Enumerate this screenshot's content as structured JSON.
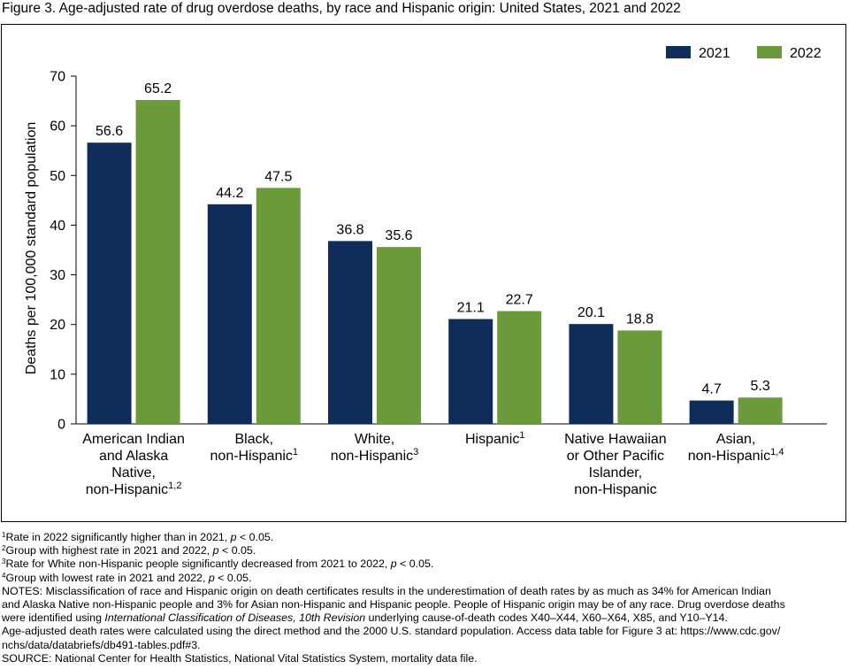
{
  "title": "Figure 3. Age-adjusted rate of drug overdose deaths, by race and Hispanic origin: United States, 2021 and 2022",
  "chart_data": {
    "type": "bar",
    "ylabel": "Deaths per 100,000 standard population",
    "ylim": [
      0,
      70
    ],
    "yticks": [
      "0",
      "10",
      "20",
      "30",
      "40",
      "50",
      "60",
      "70"
    ],
    "legend_position": "top-right",
    "grid": false,
    "categories": [
      {
        "lines": [
          "American Indian",
          "and Alaska",
          "Native,",
          "non-Hispanic"
        ],
        "sup": "1,2"
      },
      {
        "lines": [
          "Black,",
          "non-Hispanic"
        ],
        "sup": "1"
      },
      {
        "lines": [
          "White,",
          "non-Hispanic"
        ],
        "sup": "3"
      },
      {
        "lines": [
          "Hispanic"
        ],
        "sup": "1"
      },
      {
        "lines": [
          "Native Hawaiian",
          "or Other Pacific",
          "Islander,",
          "non-Hispanic"
        ],
        "sup": ""
      },
      {
        "lines": [
          "Asian,",
          "non-Hispanic"
        ],
        "sup": "1,4"
      }
    ],
    "series": [
      {
        "name": "2021",
        "color": "#0f2d5a",
        "values": [
          56.6,
          44.2,
          36.8,
          21.1,
          20.1,
          4.7
        ]
      },
      {
        "name": "2022",
        "color": "#6a9a3a",
        "values": [
          65.2,
          47.5,
          35.6,
          22.7,
          18.8,
          5.3
        ]
      }
    ]
  },
  "footnotes": [
    {
      "sup": "1",
      "text": "Rate in 2022 significantly higher than in 2021, ",
      "p": "p",
      "after": " < 0.05."
    },
    {
      "sup": "2",
      "text": "Group with highest rate in 2021 and 2022, ",
      "p": "p",
      "after": " < 0.05."
    },
    {
      "sup": "3",
      "text": "Rate for White non-Hispanic people significantly decreased from 2021 to 2022, ",
      "p": "p",
      "after": " < 0.05."
    },
    {
      "sup": "4",
      "text": "Group with lowest rate in 2021 and 2022, ",
      "p": "p",
      "after": " < 0.05."
    }
  ],
  "notes": {
    "line1": "NOTES: Misclassification of race and Hispanic origin on death certificates results in the underestimation of death rates by as much as 34% for American Indian",
    "line2": "and Alaska Native non-Hispanic people and 3% for Asian non-Hispanic and Hispanic people. People of Hispanic origin may be of any race. Drug overdose deaths",
    "line3_a": "were identified using ",
    "line3_italic": "International Classification of Diseases, 10th Revision",
    "line3_b": " underlying cause-of-death codes X40–X44, X60–X64, X85, and Y10–Y14.",
    "line4": "Age-adjusted death rates were calculated using the direct method and the 2000 U.S. standard population. Access data table for Figure 3 at: https://www.cdc.gov/",
    "line5": "nchs/data/databriefs/db491-tables.pdf#3.",
    "source": "SOURCE: National Center for Health Statistics, National Vital Statistics System, mortality data file."
  }
}
